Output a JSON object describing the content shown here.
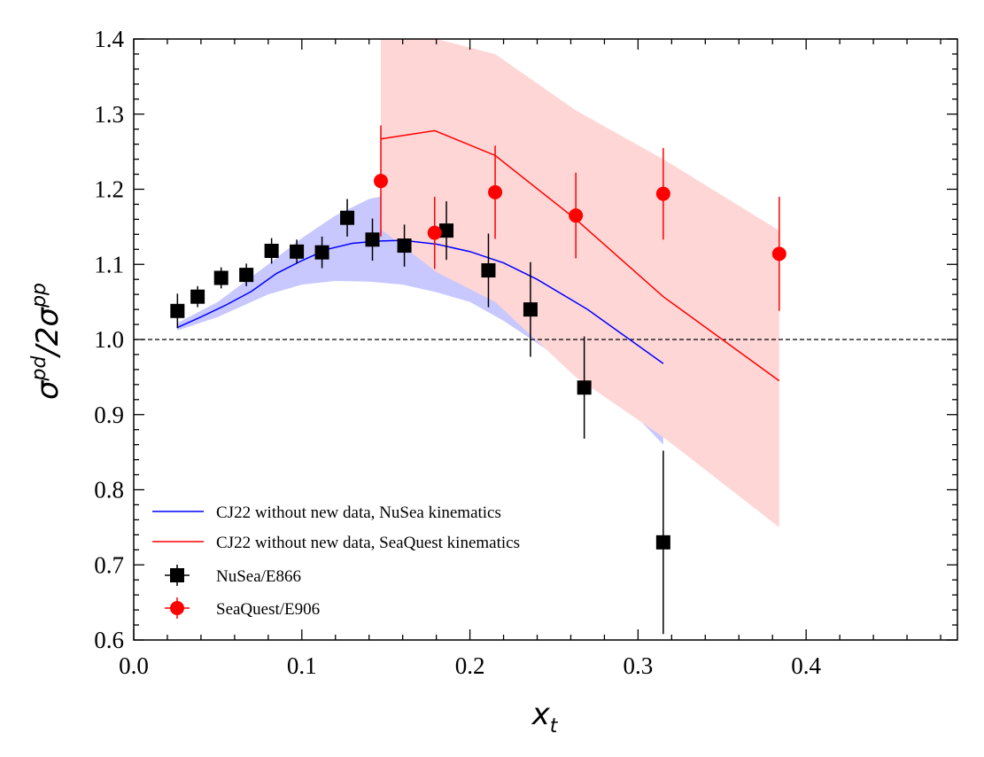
{
  "chart_data": {
    "type": "scatter",
    "xlabel": {
      "base": "x",
      "sub": "t"
    },
    "ylabel": {
      "part1": "σ",
      "sup1": "pd",
      "part2": "/2σ",
      "sup2": "pp"
    },
    "xlim": [
      0.0,
      0.49
    ],
    "ylim": [
      0.6,
      1.4
    ],
    "xticks": [
      "0.0",
      "0.1",
      "0.2",
      "0.3",
      "0.4"
    ],
    "xtick_values": [
      0.0,
      0.1,
      0.2,
      0.3,
      0.4
    ],
    "yticks": [
      "0.6",
      "0.7",
      "0.8",
      "0.9",
      "1.0",
      "1.1",
      "1.2",
      "1.3",
      "1.4"
    ],
    "ytick_values": [
      0.6,
      0.7,
      0.8,
      0.9,
      1.0,
      1.1,
      1.2,
      1.3,
      1.4
    ],
    "reference_line": {
      "y": 1.0,
      "style": "dashed",
      "color": "#000000"
    },
    "grid": false,
    "legend_position": "lower-left",
    "bands": [
      {
        "color": "#c8c8ff",
        "x": [
          0.026,
          0.05,
          0.08,
          0.1,
          0.12,
          0.14,
          0.16,
          0.18,
          0.2,
          0.22,
          0.24,
          0.26,
          0.28,
          0.3,
          0.315
        ],
        "upper": [
          1.022,
          1.05,
          1.1,
          1.135,
          1.165,
          1.187,
          1.197,
          1.198,
          1.19,
          1.175,
          1.15,
          1.13,
          1.11,
          1.09,
          1.077
        ],
        "lower": [
          1.012,
          1.03,
          1.06,
          1.073,
          1.078,
          1.077,
          1.073,
          1.063,
          1.05,
          1.025,
          0.995,
          0.965,
          0.93,
          0.895,
          0.86
        ]
      },
      {
        "color": "#ffd6d6",
        "x": [
          0.147,
          0.18,
          0.215,
          0.263,
          0.315,
          0.384
        ],
        "upper": [
          1.4,
          1.41,
          1.38,
          1.305,
          1.24,
          1.145
        ],
        "lower": [
          1.147,
          1.09,
          1.05,
          0.95,
          0.87,
          0.75
        ]
      }
    ],
    "series": [
      {
        "name": "CJ22 without new data, NuSea kinematics",
        "kind": "line",
        "color": "#0000ff",
        "x": [
          0.026,
          0.04,
          0.055,
          0.07,
          0.085,
          0.1,
          0.115,
          0.13,
          0.145,
          0.16,
          0.18,
          0.2,
          0.22,
          0.24,
          0.27,
          0.29,
          0.315
        ],
        "y": [
          1.016,
          1.03,
          1.046,
          1.064,
          1.088,
          1.105,
          1.12,
          1.128,
          1.131,
          1.132,
          1.127,
          1.117,
          1.102,
          1.08,
          1.04,
          1.008,
          0.968
        ]
      },
      {
        "name": "CJ22 without new data, SeaQuest kinematics",
        "kind": "line",
        "color": "#ff0000",
        "x": [
          0.147,
          0.179,
          0.215,
          0.263,
          0.315,
          0.384
        ],
        "y": [
          1.267,
          1.278,
          1.245,
          1.16,
          1.057,
          0.945
        ]
      },
      {
        "name": "NuSea/E866",
        "kind": "points",
        "marker": "square",
        "color": "#000000",
        "x": [
          0.026,
          0.038,
          0.052,
          0.067,
          0.082,
          0.097,
          0.112,
          0.127,
          0.142,
          0.161,
          0.186,
          0.211,
          0.236,
          0.268,
          0.315
        ],
        "y": [
          1.038,
          1.057,
          1.082,
          1.086,
          1.118,
          1.117,
          1.116,
          1.162,
          1.133,
          1.125,
          1.145,
          1.092,
          1.04,
          0.936,
          0.73
        ],
        "err": [
          0.023,
          0.014,
          0.014,
          0.015,
          0.017,
          0.016,
          0.021,
          0.025,
          0.028,
          0.028,
          0.039,
          0.049,
          0.063,
          0.068,
          0.122
        ]
      },
      {
        "name": "SeaQuest/E906",
        "kind": "points",
        "marker": "circle",
        "color": "#ff0000",
        "x": [
          0.147,
          0.179,
          0.215,
          0.263,
          0.315,
          0.384
        ],
        "y": [
          1.211,
          1.142,
          1.196,
          1.165,
          1.194,
          1.114
        ],
        "err": [
          0.074,
          0.048,
          0.062,
          0.057,
          0.061,
          0.076
        ]
      }
    ]
  }
}
